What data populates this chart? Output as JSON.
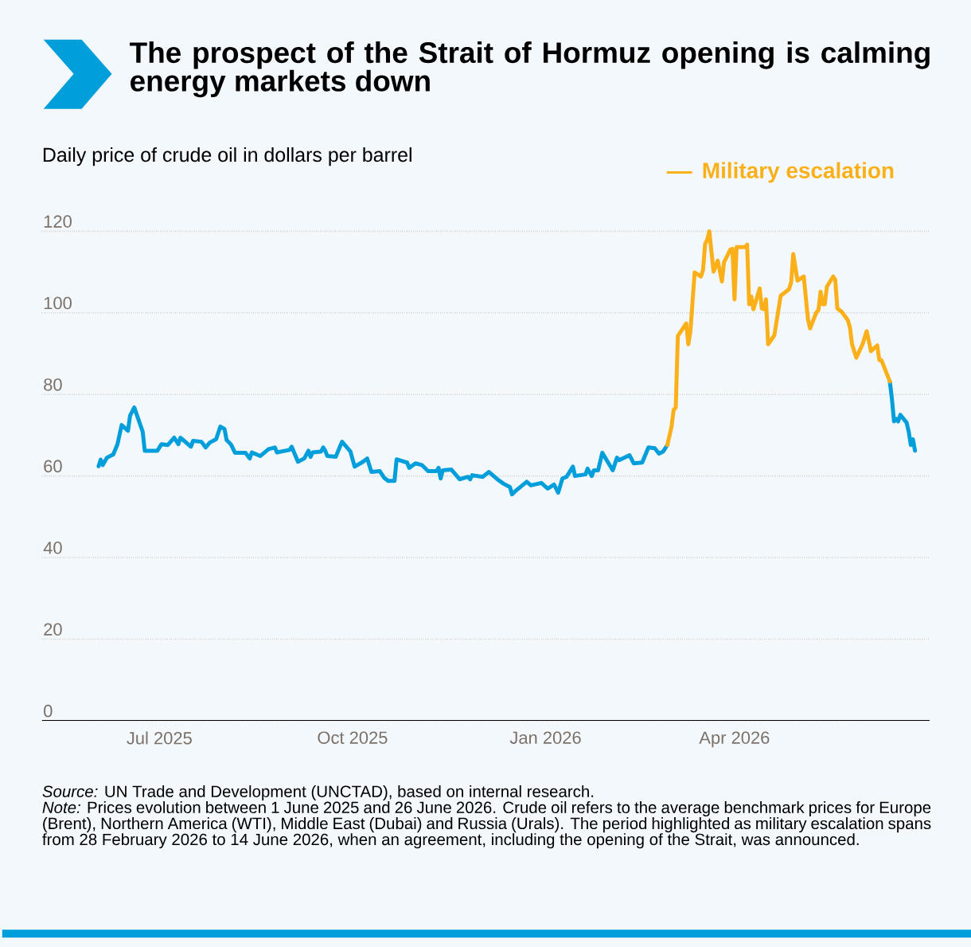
{
  "chart_data": {
    "type": "line",
    "title": "The prospect of the Strait of Hormuz opening is calming energy markets down",
    "subtitle": "Daily price of crude oil in dollars per barrel",
    "annotations": [
      "*Source:* UN Trade and Development (UNCTAD), based on internal research.",
      "*Note:* Prices evolution between 1 June 2025 and 26 June 2026. Crude oil refers to the average benchmark prices for Europe (Brent), Northern America (WTI), Middle East (Dubai) and Russia (Urals). The period highlighted as military escalation spans from 28 February 2026 to 14 June 2026, when an agreement, including the opening of the Strait, was announced."
    ],
    "xlim": [
      "2025-05-06",
      "2026-07-03"
    ],
    "ylim": [
      0,
      176.7
    ],
    "xticks": [
      {
        "value": "2025-07-01",
        "label": "Jul 2025"
      },
      {
        "value": "2025-10-01",
        "label": "Oct 2025"
      },
      {
        "value": "2026-01-01",
        "label": "Jan 2026"
      },
      {
        "value": "2026-04-01",
        "label": "Apr 2026"
      }
    ],
    "yticks": [
      0,
      20,
      40,
      60,
      80,
      100,
      120
    ],
    "grid": "y",
    "legend": "top right",
    "line_style": "solid",
    "series": [
      {
        "color": "#009edb",
        "x": [
          "2025-06-02",
          "2025-06-03",
          "2025-06-04",
          "2025-06-06",
          "2025-06-09",
          "2025-06-11",
          "2025-06-13",
          "2025-06-16",
          "2025-06-17",
          "2025-06-19",
          "2025-06-23",
          "2025-06-24",
          "2025-06-30",
          "2025-07-02",
          "2025-07-05",
          "2025-07-08",
          "2025-07-10",
          "2025-07-11",
          "2025-07-16",
          "2025-07-17",
          "2025-07-21",
          "2025-07-23",
          "2025-07-25",
          "2025-07-28",
          "2025-07-30",
          "2025-08-01",
          "2025-08-02",
          "2025-08-04",
          "2025-08-06",
          "2025-08-11",
          "2025-08-13",
          "2025-08-14",
          "2025-08-18",
          "2025-08-22",
          "2025-08-25",
          "2025-08-26",
          "2025-09-01",
          "2025-09-02",
          "2025-09-05",
          "2025-09-08",
          "2025-09-10",
          "2025-09-11",
          "2025-09-12",
          "2025-09-16",
          "2025-09-17",
          "2025-09-18",
          "2025-09-19",
          "2025-09-23",
          "2025-09-25",
          "2025-09-26",
          "2025-09-30",
          "2025-10-02",
          "2025-10-06",
          "2025-10-08",
          "2025-10-10",
          "2025-10-14",
          "2025-10-16",
          "2025-10-18",
          "2025-10-21",
          "2025-10-22",
          "2025-10-27",
          "2025-10-28",
          "2025-10-31",
          "2025-11-03",
          "2025-11-06",
          "2025-11-10",
          "2025-11-11",
          "2025-11-12",
          "2025-11-13",
          "2025-11-17",
          "2025-11-21",
          "2025-11-25",
          "2025-11-26",
          "2025-11-27",
          "2025-12-02",
          "2025-12-05",
          "2025-12-09",
          "2025-12-12",
          "2025-12-15",
          "2025-12-16",
          "2025-12-18",
          "2025-12-23",
          "2025-12-25",
          "2025-12-30",
          "2026-01-02",
          "2026-01-05",
          "2026-01-07",
          "2026-01-09",
          "2026-01-11",
          "2026-01-14",
          "2026-01-15",
          "2026-01-20",
          "2026-01-21",
          "2026-01-23",
          "2026-01-24",
          "2026-01-26",
          "2026-01-28",
          "2026-02-02",
          "2026-02-04",
          "2026-02-05",
          "2026-02-10",
          "2026-02-12",
          "2026-02-16",
          "2026-02-19",
          "2026-02-22",
          "2026-02-24",
          "2026-02-26",
          "2026-02-28",
          "2026-04-01",
          "2026-06-14",
          "2026-06-15",
          "2026-06-16",
          "2026-06-17",
          "2026-06-18",
          "2026-06-19",
          "2026-06-22",
          "2026-06-23",
          "2026-06-24",
          "2026-06-25",
          "2026-06-26"
        ],
        "values": [
          62.4,
          64.0,
          62.7,
          64.5,
          65.3,
          67.8,
          72.5,
          71.1,
          74.8,
          76.8,
          70.9,
          66.2,
          66.2,
          67.8,
          67.6,
          69.4,
          67.8,
          69.4,
          67.2,
          68.6,
          68.4,
          67.0,
          68.2,
          69.0,
          72.1,
          71.5,
          68.8,
          67.8,
          65.7,
          65.7,
          64.3,
          65.8,
          64.9,
          66.6,
          67.0,
          65.8,
          66.4,
          67.2,
          63.5,
          64.3,
          66.2,
          64.7,
          65.8,
          66.0,
          67.0,
          66.2,
          64.9,
          64.7,
          67.2,
          68.4,
          66.0,
          62.3,
          63.5,
          64.3,
          61.0,
          61.2,
          59.6,
          58.8,
          58.8,
          64.1,
          63.3,
          62.0,
          63.1,
          62.7,
          61.2,
          61.2,
          62.0,
          59.4,
          61.4,
          61.6,
          59.2,
          59.8,
          59.2,
          60.2,
          59.8,
          61.0,
          59.2,
          58.1,
          57.3,
          55.5,
          56.5,
          58.6,
          57.7,
          58.3,
          56.9,
          57.9,
          55.9,
          59.4,
          59.8,
          62.3,
          60.0,
          60.4,
          61.8,
          60.0,
          61.4,
          61.4,
          65.7,
          61.4,
          64.5,
          63.9,
          65.1,
          63.1,
          63.3,
          67.0,
          66.8,
          65.5,
          66.0,
          67.6,
          null,
          83.2,
          78.9,
          73.4,
          74.0,
          73.4,
          75.0,
          73.1,
          70.9,
          67.6,
          69.0,
          66.2
        ]
      },
      {
        "name": "Military escalation",
        "color": "#fbb01a",
        "x": [
          "2026-02-28",
          "2026-03-02",
          "2026-03-03",
          "2026-03-04",
          "2026-03-05",
          "2026-03-09",
          "2026-03-10",
          "2026-03-11",
          "2026-03-13",
          "2026-03-16",
          "2026-03-17",
          "2026-03-18",
          "2026-03-19",
          "2026-03-20",
          "2026-03-22",
          "2026-03-24",
          "2026-03-26",
          "2026-03-27",
          "2026-03-30",
          "2026-03-31",
          "2026-04-01",
          "2026-04-02",
          "2026-04-06",
          "2026-04-07",
          "2026-04-08",
          "2026-04-09",
          "2026-04-10",
          "2026-04-13",
          "2026-04-14",
          "2026-04-15",
          "2026-04-16",
          "2026-04-17",
          "2026-04-20",
          "2026-04-21",
          "2026-04-23",
          "2026-04-25",
          "2026-04-27",
          "2026-04-28",
          "2026-04-29",
          "2026-05-01",
          "2026-05-04",
          "2026-05-06",
          "2026-05-07",
          "2026-05-10",
          "2026-05-11",
          "2026-05-12",
          "2026-05-13",
          "2026-05-14",
          "2026-05-15",
          "2026-05-18",
          "2026-05-19",
          "2026-05-20",
          "2026-05-22",
          "2026-05-25",
          "2026-05-26",
          "2026-05-27",
          "2026-05-29",
          "2026-06-01",
          "2026-06-03",
          "2026-06-05",
          "2026-06-08",
          "2026-06-09",
          "2026-06-10",
          "2026-06-14"
        ],
        "values": [
          67.6,
          72.1,
          76.2,
          76.8,
          94.3,
          97.4,
          92.3,
          95.5,
          109.9,
          108.9,
          110.5,
          116.9,
          117.9,
          120.0,
          110.1,
          112.8,
          107.7,
          112.4,
          115.5,
          115.7,
          103.3,
          116.1,
          116.1,
          116.7,
          102.1,
          104.0,
          100.9,
          106.0,
          101.1,
          100.9,
          103.3,
          92.3,
          94.5,
          97.8,
          104.2,
          105.0,
          105.8,
          107.5,
          114.4,
          107.9,
          108.9,
          98.4,
          96.2,
          100.1,
          100.7,
          105.2,
          102.1,
          102.1,
          106.4,
          108.9,
          108.1,
          101.1,
          100.3,
          98.2,
          96.4,
          92.3,
          89.0,
          92.3,
          95.5,
          90.6,
          92.0,
          88.4,
          88.4,
          83.2
        ]
      }
    ]
  }
}
